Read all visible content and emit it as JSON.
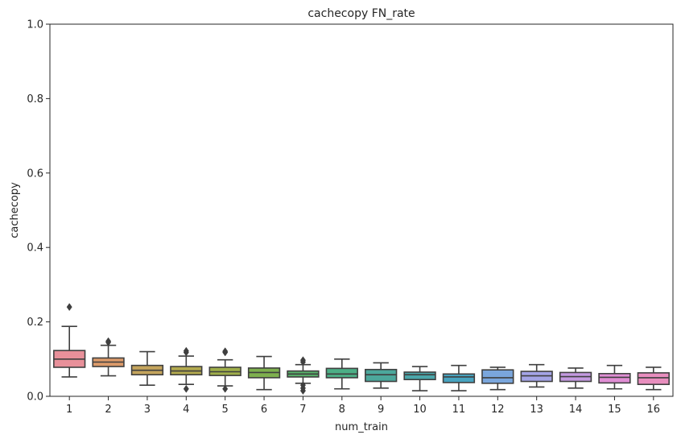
{
  "chart_data": {
    "type": "box",
    "title": "cachecopy FN_rate",
    "xlabel": "num_train",
    "ylabel": "cachecopy",
    "ylim": [
      0,
      1.0
    ],
    "yticks": [
      "0.0",
      "0.2",
      "0.4",
      "0.6",
      "0.8",
      "1.0"
    ],
    "grid": false,
    "categories": [
      "1",
      "2",
      "3",
      "4",
      "5",
      "6",
      "7",
      "8",
      "9",
      "10",
      "11",
      "12",
      "13",
      "14",
      "15",
      "16"
    ],
    "boxes": [
      {
        "category": "1",
        "whisker_low": 0.052,
        "q1": 0.078,
        "median": 0.1,
        "q3": 0.123,
        "whisker_high": 0.188,
        "outliers": [
          0.24
        ],
        "color": "#e8909a"
      },
      {
        "category": "2",
        "whisker_low": 0.055,
        "q1": 0.08,
        "median": 0.092,
        "q3": 0.103,
        "whisker_high": 0.137,
        "outliers": [
          0.145,
          0.148
        ],
        "color": "#dc9a6a"
      },
      {
        "category": "3",
        "whisker_low": 0.03,
        "q1": 0.058,
        "median": 0.07,
        "q3": 0.083,
        "whisker_high": 0.12,
        "outliers": [],
        "color": "#c4a45c"
      },
      {
        "category": "4",
        "whisker_low": 0.032,
        "q1": 0.058,
        "median": 0.068,
        "q3": 0.08,
        "whisker_high": 0.108,
        "outliers": [
          0.02,
          0.118,
          0.122
        ],
        "color": "#b2a94e"
      },
      {
        "category": "5",
        "whisker_low": 0.028,
        "q1": 0.056,
        "median": 0.066,
        "q3": 0.078,
        "whisker_high": 0.098,
        "outliers": [
          0.02,
          0.118,
          0.121
        ],
        "color": "#9fae4a"
      },
      {
        "category": "6",
        "whisker_low": 0.018,
        "q1": 0.05,
        "median": 0.064,
        "q3": 0.076,
        "whisker_high": 0.107,
        "outliers": [],
        "color": "#7eb04e"
      },
      {
        "category": "7",
        "whisker_low": 0.035,
        "q1": 0.052,
        "median": 0.06,
        "q3": 0.068,
        "whisker_high": 0.085,
        "outliers": [
          0.015,
          0.022,
          0.03,
          0.092,
          0.097
        ],
        "color": "#58b06a"
      },
      {
        "category": "8",
        "whisker_low": 0.02,
        "q1": 0.05,
        "median": 0.06,
        "q3": 0.075,
        "whisker_high": 0.1,
        "outliers": [],
        "color": "#4caf86"
      },
      {
        "category": "9",
        "whisker_low": 0.022,
        "q1": 0.04,
        "median": 0.058,
        "q3": 0.072,
        "whisker_high": 0.09,
        "outliers": [],
        "color": "#4ca89c"
      },
      {
        "category": "10",
        "whisker_low": 0.015,
        "q1": 0.045,
        "median": 0.058,
        "q3": 0.065,
        "whisker_high": 0.08,
        "outliers": [],
        "color": "#4aa6aa"
      },
      {
        "category": "11",
        "whisker_low": 0.015,
        "q1": 0.037,
        "median": 0.052,
        "q3": 0.06,
        "whisker_high": 0.083,
        "outliers": [],
        "color": "#48a4c0"
      },
      {
        "category": "12",
        "whisker_low": 0.018,
        "q1": 0.035,
        "median": 0.05,
        "q3": 0.071,
        "whisker_high": 0.078,
        "outliers": [],
        "color": "#7aa6dc"
      },
      {
        "category": "13",
        "whisker_low": 0.025,
        "q1": 0.04,
        "median": 0.055,
        "q3": 0.067,
        "whisker_high": 0.085,
        "outliers": [],
        "color": "#a4a4e6"
      },
      {
        "category": "14",
        "whisker_low": 0.022,
        "q1": 0.04,
        "median": 0.053,
        "q3": 0.064,
        "whisker_high": 0.076,
        "outliers": [],
        "color": "#c49ae0"
      },
      {
        "category": "15",
        "whisker_low": 0.02,
        "q1": 0.036,
        "median": 0.051,
        "q3": 0.061,
        "whisker_high": 0.083,
        "outliers": [],
        "color": "#e08ed4"
      },
      {
        "category": "16",
        "whisker_low": 0.018,
        "q1": 0.032,
        "median": 0.05,
        "q3": 0.063,
        "whisker_high": 0.078,
        "outliers": [],
        "color": "#e88ebe"
      }
    ]
  }
}
